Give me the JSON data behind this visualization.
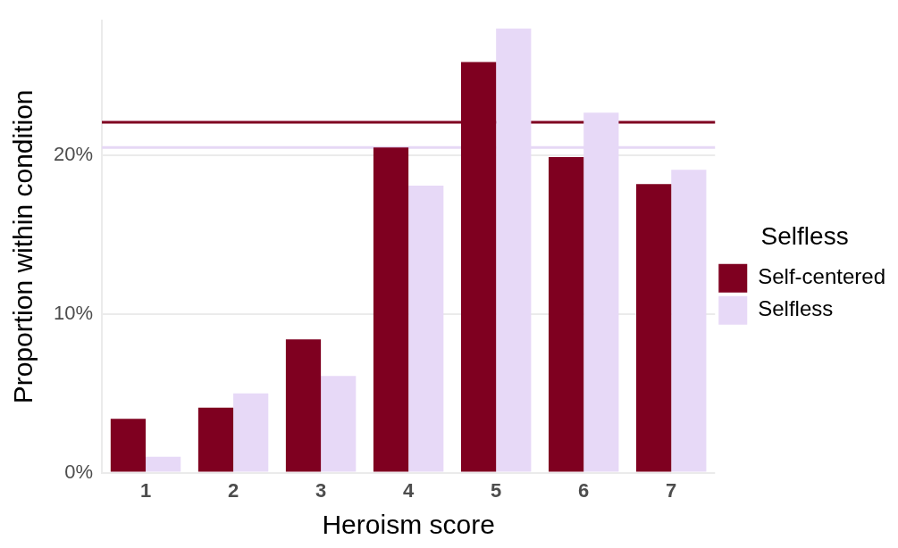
{
  "chart_data": {
    "type": "bar",
    "xlabel": "Heroism score",
    "ylabel": "Proportion within condition",
    "legend_title": "Selfless",
    "categories": [
      "1",
      "2",
      "3",
      "4",
      "5",
      "6",
      "7"
    ],
    "series": [
      {
        "name": "Self-centered",
        "color": "#7f0020",
        "values": [
          3.4,
          4.1,
          8.4,
          20.5,
          25.9,
          19.9,
          18.2
        ]
      },
      {
        "name": "Selfless",
        "color": "#e7d9f7",
        "values": [
          1.0,
          5.0,
          6.1,
          18.1,
          28.0,
          22.7,
          19.1
        ]
      }
    ],
    "ylim": [
      0,
      28.5
    ],
    "yticks": [
      {
        "value": 0,
        "label": "0%"
      },
      {
        "value": 10,
        "label": "10%"
      },
      {
        "value": 20,
        "label": "20%"
      }
    ],
    "grid": "y",
    "legend": "right",
    "ref_lines": [
      {
        "axis": "y",
        "value": 22.1,
        "color": "#7f0020"
      },
      {
        "axis": "y",
        "value": 20.5,
        "color": "#e6d8f5"
      }
    ]
  }
}
